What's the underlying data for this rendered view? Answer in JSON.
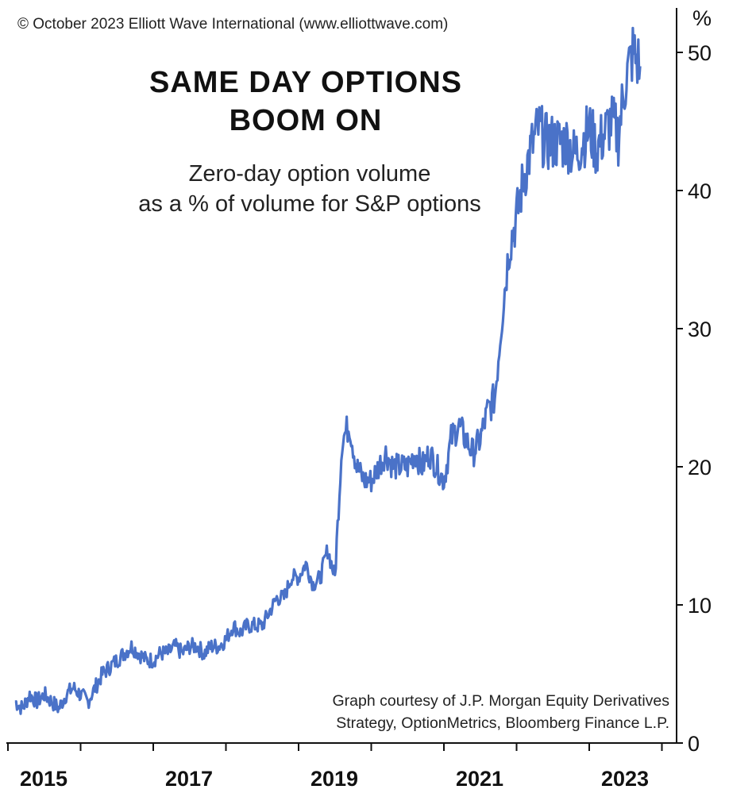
{
  "copyright": "© October 2023 Elliott Wave International (www.elliottwave.com)",
  "chart_data": {
    "type": "line",
    "title": [
      "SAME DAY OPTIONS",
      "BOOM ON"
    ],
    "subtitle": [
      "Zero-day option volume",
      "as a % of volume for S&P options"
    ],
    "ylabel": "%",
    "ylim": [
      0,
      52
    ],
    "yticks": [
      "0",
      "10",
      "20",
      "30",
      "40",
      "50"
    ],
    "xlim": [
      2015,
      2024.1
    ],
    "xticks": [
      "2015",
      "2017",
      "2019",
      "2021",
      "2023"
    ],
    "line_color": "#4a72c8",
    "credit": [
      "Graph courtesy of J.P. Morgan Equity Derivatives",
      "Strategy, OptionMetrics, Bloomberg Finance L.P."
    ],
    "series": [
      {
        "name": "Zero-day option volume %",
        "x": [
          2015.1,
          2015.2,
          2015.3,
          2015.4,
          2015.5,
          2015.6,
          2015.7,
          2015.8,
          2015.9,
          2016.0,
          2016.1,
          2016.2,
          2016.3,
          2016.4,
          2016.5,
          2016.6,
          2016.7,
          2016.8,
          2016.9,
          2017.0,
          2017.1,
          2017.2,
          2017.3,
          2017.4,
          2017.5,
          2017.6,
          2017.7,
          2017.8,
          2017.9,
          2018.0,
          2018.1,
          2018.2,
          2018.3,
          2018.4,
          2018.5,
          2018.6,
          2018.7,
          2018.8,
          2018.9,
          2019.0,
          2019.1,
          2019.2,
          2019.3,
          2019.4,
          2019.5,
          2019.6,
          2019.7,
          2019.8,
          2019.9,
          2020.0,
          2020.1,
          2020.2,
          2020.3,
          2020.4,
          2020.5,
          2020.6,
          2020.7,
          2020.8,
          2020.9,
          2021.0,
          2021.1,
          2021.2,
          2021.3,
          2021.4,
          2021.5,
          2021.6,
          2021.7,
          2021.8,
          2021.9,
          2022.0,
          2022.1,
          2022.2,
          2022.3,
          2022.4,
          2022.5,
          2022.6,
          2022.7,
          2022.8,
          2022.9,
          2023.0,
          2023.1,
          2023.2,
          2023.3,
          2023.4,
          2023.5,
          2023.6,
          2023.7
        ],
        "y": [
          3,
          2.5,
          3.5,
          3,
          3.5,
          3,
          2.5,
          3.5,
          4,
          3.5,
          3,
          4,
          5,
          5.5,
          6,
          6.5,
          7,
          6.5,
          6,
          6,
          6.5,
          6.5,
          7,
          6.5,
          7,
          7,
          6.5,
          7,
          7,
          7.5,
          8.5,
          8,
          8.5,
          8.5,
          8.5,
          9.5,
          10.5,
          10.5,
          12,
          12,
          13,
          11.5,
          12,
          14,
          12,
          22,
          23,
          20,
          19,
          19,
          20,
          21,
          20,
          20,
          20,
          21,
          20,
          21,
          20,
          19,
          22,
          23,
          22,
          21,
          22,
          24,
          25,
          31,
          36,
          38,
          41,
          43,
          44.5,
          43.5,
          43.5,
          43.5,
          43.5,
          42.5,
          43.5,
          44.5,
          43,
          44,
          45,
          44,
          48,
          50,
          49
        ]
      }
    ]
  }
}
